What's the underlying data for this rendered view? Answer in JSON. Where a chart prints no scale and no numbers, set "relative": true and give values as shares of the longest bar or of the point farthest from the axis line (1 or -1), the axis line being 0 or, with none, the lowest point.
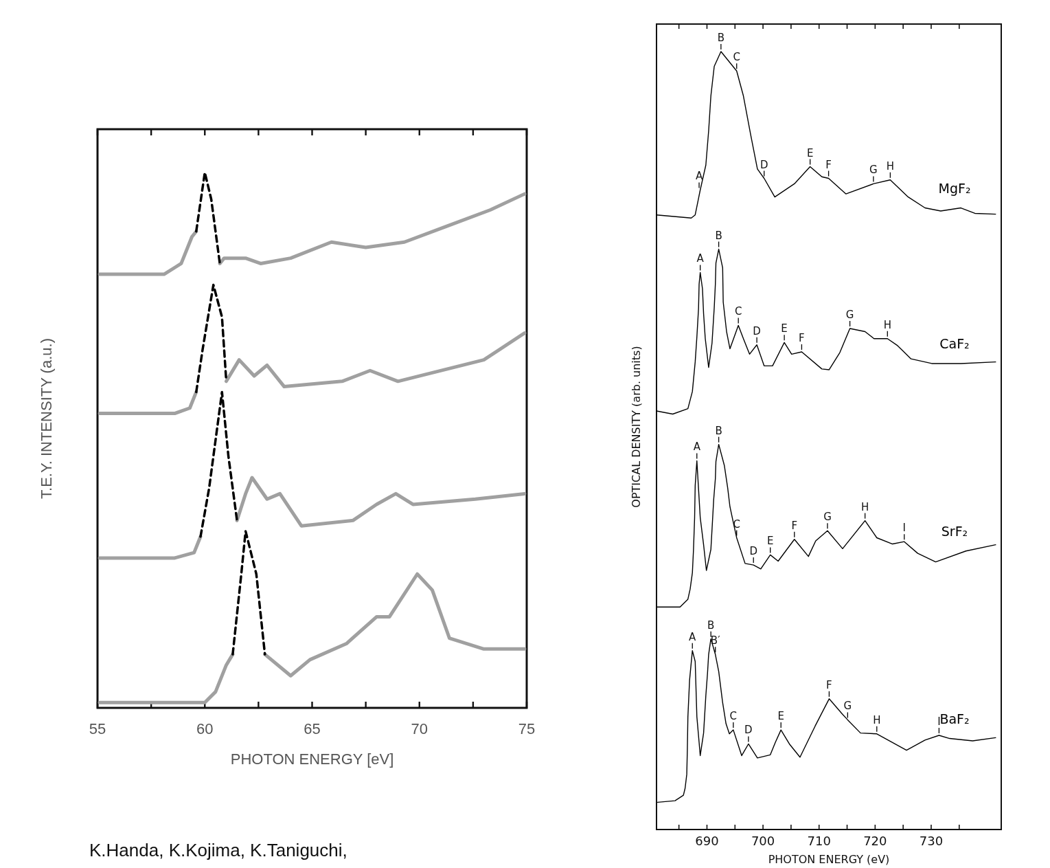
{
  "chart_data": [
    {
      "type": "line",
      "relative": true,
      "xlabel": "PHOTON ENERGY [eV]",
      "ylabel": "T.E.Y. INTENSITY (a.u.)",
      "xlim": [
        55,
        75
      ],
      "xticks": [
        55,
        {
          "value": 57.5,
          "label": null
        },
        60,
        {
          "value": 62.5,
          "label": null
        },
        65,
        {
          "value": 67.5,
          "label": null
        },
        70,
        {
          "value": 72.5,
          "label": null
        },
        75
      ],
      "series": [
        {
          "color": "#a0a0a0",
          "x": [
            55.1,
            58.1,
            58.9,
            59.4,
            59.6,
            60.0,
            60.7,
            60.9,
            61.9,
            62.6,
            64.0,
            65.9,
            67.5,
            69.3,
            71.3,
            73.3,
            74.9
          ],
          "values": [
            0.81,
            0.81,
            0.83,
            0.88,
            0.89,
            null,
            0.83,
            0.84,
            0.84,
            0.83,
            0.84,
            0.87,
            0.86,
            0.87,
            0.9,
            0.93,
            0.96
          ]
        },
        {
          "color": "#000000",
          "line_style": "dashed",
          "x": [
            59.6,
            60.0,
            60.3,
            60.7
          ],
          "values": [
            0.89,
            1.0,
            0.95,
            0.83
          ]
        },
        {
          "color": "#a0a0a0",
          "x": [
            55.1,
            57.3,
            58.6,
            59.3,
            59.6,
            60.4,
            61.0,
            61.6,
            62.3,
            62.9,
            63.7,
            66.4,
            67.7,
            69.0,
            73.0,
            74.9
          ],
          "values": [
            0.55,
            0.55,
            0.55,
            0.56,
            0.59,
            null,
            0.61,
            0.65,
            0.62,
            0.64,
            0.6,
            0.61,
            0.63,
            0.61,
            0.65,
            0.7
          ]
        },
        {
          "color": "#000000",
          "line_style": "dashed",
          "x": [
            59.6,
            59.9,
            60.4,
            60.8,
            61.0
          ],
          "values": [
            0.59,
            0.67,
            0.79,
            0.73,
            0.61
          ]
        },
        {
          "color": "#a0a0a0",
          "x": [
            55.1,
            58.6,
            59.5,
            59.8,
            60.8,
            61.5,
            61.9,
            62.2,
            62.9,
            63.5,
            64.5,
            66.9,
            68.0,
            68.9,
            69.7,
            72.6,
            74.9
          ],
          "values": [
            0.28,
            0.28,
            0.29,
            0.32,
            null,
            0.35,
            0.4,
            0.43,
            0.39,
            0.4,
            0.34,
            0.35,
            0.38,
            0.4,
            0.38,
            0.39,
            0.4
          ]
        },
        {
          "color": "#000000",
          "line_style": "dashed",
          "x": [
            59.8,
            60.2,
            60.8,
            61.1,
            61.5
          ],
          "values": [
            0.32,
            0.41,
            0.59,
            0.47,
            0.35
          ]
        },
        {
          "color": "#a0a0a0",
          "x": [
            55.1,
            60.0,
            60.5,
            61.0,
            61.3,
            61.9,
            62.8,
            64.0,
            64.9,
            66.6,
            68.0,
            68.6,
            69.9,
            70.6,
            71.4,
            73.0,
            74.9
          ],
          "values": [
            0.01,
            0.01,
            0.03,
            0.08,
            0.1,
            null,
            0.1,
            0.06,
            0.09,
            0.12,
            0.17,
            0.17,
            0.25,
            0.22,
            0.13,
            0.11,
            0.11
          ]
        },
        {
          "color": "#000000",
          "line_style": "dashed",
          "x": [
            61.3,
            61.7,
            61.9,
            62.4,
            62.8
          ],
          "values": [
            0.1,
            0.25,
            0.33,
            0.25,
            0.1
          ]
        }
      ],
      "annotations": [
        "K.Handa, K.Kojima, K.Taniguchi,"
      ]
    },
    {
      "type": "line",
      "relative": true,
      "xlabel": "PHOTON ENERGY (eV)",
      "ylabel": "OPTICAL DENSITY (arb. units)",
      "xlim": [
        681,
        742.5
      ],
      "xticks": [
        {
          "value": 685,
          "label": null
        },
        690,
        {
          "value": 695,
          "label": null
        },
        700,
        {
          "value": 705,
          "label": null
        },
        710,
        {
          "value": 715,
          "label": null
        },
        720,
        {
          "value": 725,
          "label": null
        },
        730,
        {
          "value": 735,
          "label": null
        }
      ],
      "series": [
        {
          "name": "MgF₂",
          "color": "#000000",
          "x": [
            681.0,
            687.2,
            687.9,
            688.8,
            689.8,
            690.3,
            690.7,
            691.3,
            692.5,
            695.3,
            696.5,
            697.8,
            699.0,
            700.2,
            702.1,
            705.6,
            708.4,
            710.5,
            711.7,
            714.8,
            719.7,
            722.7,
            725.9,
            728.9,
            731.7,
            735.3,
            737.8,
            741.5
          ],
          "values": [
            0.79,
            0.786,
            0.79,
            0.822,
            0.854,
            0.898,
            0.943,
            0.981,
            1.0,
            0.975,
            0.943,
            0.893,
            0.849,
            0.837,
            0.813,
            0.83,
            0.852,
            0.839,
            0.837,
            0.817,
            0.83,
            0.835,
            0.813,
            0.799,
            0.795,
            0.799,
            0.792,
            0.791
          ]
        },
        {
          "name": "CaF₂",
          "color": "#000000",
          "x": [
            681.0,
            683.9,
            686.6,
            687.4,
            687.9,
            688.2,
            688.5,
            688.6,
            688.8,
            689.2,
            689.4,
            689.7,
            690.3,
            690.9,
            691.3,
            691.5,
            691.6,
            692.1,
            692.8,
            692.9,
            693.5,
            694.1,
            695.6,
            696.5,
            697.6,
            698.9,
            700.2,
            701.7,
            703.8,
            705.1,
            706.9,
            710.5,
            711.8,
            713.7,
            715.5,
            718.2,
            719.8,
            722.2,
            724.0,
            726.4,
            730.1,
            735.3,
            741.5
          ],
          "values": [
            0.538,
            0.534,
            0.541,
            0.563,
            0.601,
            0.633,
            0.67,
            0.701,
            0.716,
            0.695,
            0.663,
            0.631,
            0.594,
            0.625,
            0.671,
            0.701,
            0.728,
            0.746,
            0.722,
            0.678,
            0.64,
            0.618,
            0.648,
            0.631,
            0.611,
            0.623,
            0.596,
            0.596,
            0.626,
            0.611,
            0.614,
            0.592,
            0.591,
            0.613,
            0.644,
            0.64,
            0.631,
            0.631,
            0.622,
            0.605,
            0.599,
            0.599,
            0.601
          ]
        },
        {
          "name": "SrF₂",
          "color": "#000000",
          "x": [
            681.1,
            685.2,
            686.6,
            687.0,
            687.4,
            687.6,
            687.8,
            687.9,
            688.2,
            688.8,
            689.4,
            689.9,
            690.7,
            691.0,
            691.2,
            691.5,
            691.6,
            692.1,
            693.1,
            693.7,
            694.1,
            694.6,
            695.3,
            696.8,
            698.3,
            699.6,
            701.3,
            702.7,
            705.6,
            708.1,
            709.4,
            711.5,
            714.2,
            718.2,
            720.3,
            723.1,
            725.2,
            727.6,
            730.8,
            736.2,
            741.5
          ],
          "values": [
            0.286,
            0.286,
            0.296,
            0.309,
            0.33,
            0.36,
            0.401,
            0.442,
            0.474,
            0.401,
            0.366,
            0.333,
            0.36,
            0.398,
            0.424,
            0.451,
            0.473,
            0.495,
            0.468,
            0.439,
            0.415,
            0.398,
            0.375,
            0.342,
            0.34,
            0.335,
            0.353,
            0.345,
            0.373,
            0.351,
            0.371,
            0.384,
            0.361,
            0.397,
            0.375,
            0.367,
            0.37,
            0.355,
            0.344,
            0.358,
            0.366
          ]
        },
        {
          "name": "BaF₂",
          "color": "#000000",
          "x": [
            681.2,
            684.3,
            685.8,
            686.1,
            686.4,
            686.5,
            686.6,
            686.9,
            687.4,
            687.9,
            688.2,
            688.6,
            688.8,
            689.4,
            689.8,
            690.1,
            690.3,
            690.7,
            691.5,
            692.1,
            692.8,
            693.4,
            694.0,
            694.7,
            696.2,
            697.4,
            699.0,
            701.3,
            702.2,
            703.2,
            704.7,
            706.6,
            709.3,
            711.8,
            714.2,
            715.1,
            717.4,
            720.3,
            725.6,
            728.9,
            731.4,
            733.3,
            737.4,
            741.5
          ],
          "values": [
            0.035,
            0.037,
            0.044,
            0.053,
            0.071,
            0.102,
            0.145,
            0.192,
            0.23,
            0.216,
            0.145,
            0.112,
            0.095,
            0.124,
            0.172,
            0.201,
            0.225,
            0.245,
            0.225,
            0.203,
            0.163,
            0.136,
            0.123,
            0.128,
            0.095,
            0.11,
            0.092,
            0.096,
            0.112,
            0.128,
            0.11,
            0.093,
            0.133,
            0.168,
            0.148,
            0.141,
            0.124,
            0.123,
            0.102,
            0.115,
            0.121,
            0.117,
            0.114,
            0.118
          ]
        }
      ],
      "annotations": [
        {
          "text": "A",
          "x": 688.6,
          "y": 0.822
        },
        {
          "text": "B",
          "x": 692.5,
          "y": 1.0
        },
        {
          "text": "C",
          "x": 695.3,
          "y": 0.975
        },
        {
          "text": "D",
          "x": 700.2,
          "y": 0.837
        },
        {
          "text": "E",
          "x": 708.4,
          "y": 0.852
        },
        {
          "text": "F",
          "x": 711.7,
          "y": 0.837
        },
        {
          "text": "G",
          "x": 719.7,
          "y": 0.83
        },
        {
          "text": "H",
          "x": 722.7,
          "y": 0.835
        },
        {
          "text": "A",
          "x": 688.8,
          "y": 0.716
        },
        {
          "text": "B",
          "x": 692.1,
          "y": 0.746
        },
        {
          "text": "C",
          "x": 695.6,
          "y": 0.648
        },
        {
          "text": "D",
          "x": 698.9,
          "y": 0.623
        },
        {
          "text": "E",
          "x": 703.8,
          "y": 0.626
        },
        {
          "text": "F",
          "x": 706.9,
          "y": 0.614
        },
        {
          "text": "G",
          "x": 715.5,
          "y": 0.644
        },
        {
          "text": "H",
          "x": 722.2,
          "y": 0.631
        },
        {
          "text": "A",
          "x": 688.2,
          "y": 0.474
        },
        {
          "text": "B",
          "x": 692.1,
          "y": 0.495
        },
        {
          "text": "C",
          "x": 695.3,
          "y": 0.375
        },
        {
          "text": "D",
          "x": 698.3,
          "y": 0.34
        },
        {
          "text": "E",
          "x": 701.3,
          "y": 0.353
        },
        {
          "text": "F",
          "x": 705.6,
          "y": 0.373
        },
        {
          "text": "G",
          "x": 711.5,
          "y": 0.384
        },
        {
          "text": "H",
          "x": 718.2,
          "y": 0.397
        },
        {
          "text": "I",
          "x": 725.2,
          "y": 0.37
        },
        {
          "text": "A",
          "x": 687.4,
          "y": 0.23
        },
        {
          "text": "B",
          "x": 690.7,
          "y": 0.245
        },
        {
          "text": "B′",
          "x": 691.5,
          "y": 0.225
        },
        {
          "text": "C",
          "x": 694.7,
          "y": 0.128
        },
        {
          "text": "D",
          "x": 697.4,
          "y": 0.11
        },
        {
          "text": "E",
          "x": 703.2,
          "y": 0.128
        },
        {
          "text": "F",
          "x": 711.8,
          "y": 0.168
        },
        {
          "text": "G",
          "x": 715.1,
          "y": 0.141
        },
        {
          "text": "H",
          "x": 720.3,
          "y": 0.123
        },
        {
          "text": "I",
          "x": 731.4,
          "y": 0.121
        }
      ]
    }
  ]
}
